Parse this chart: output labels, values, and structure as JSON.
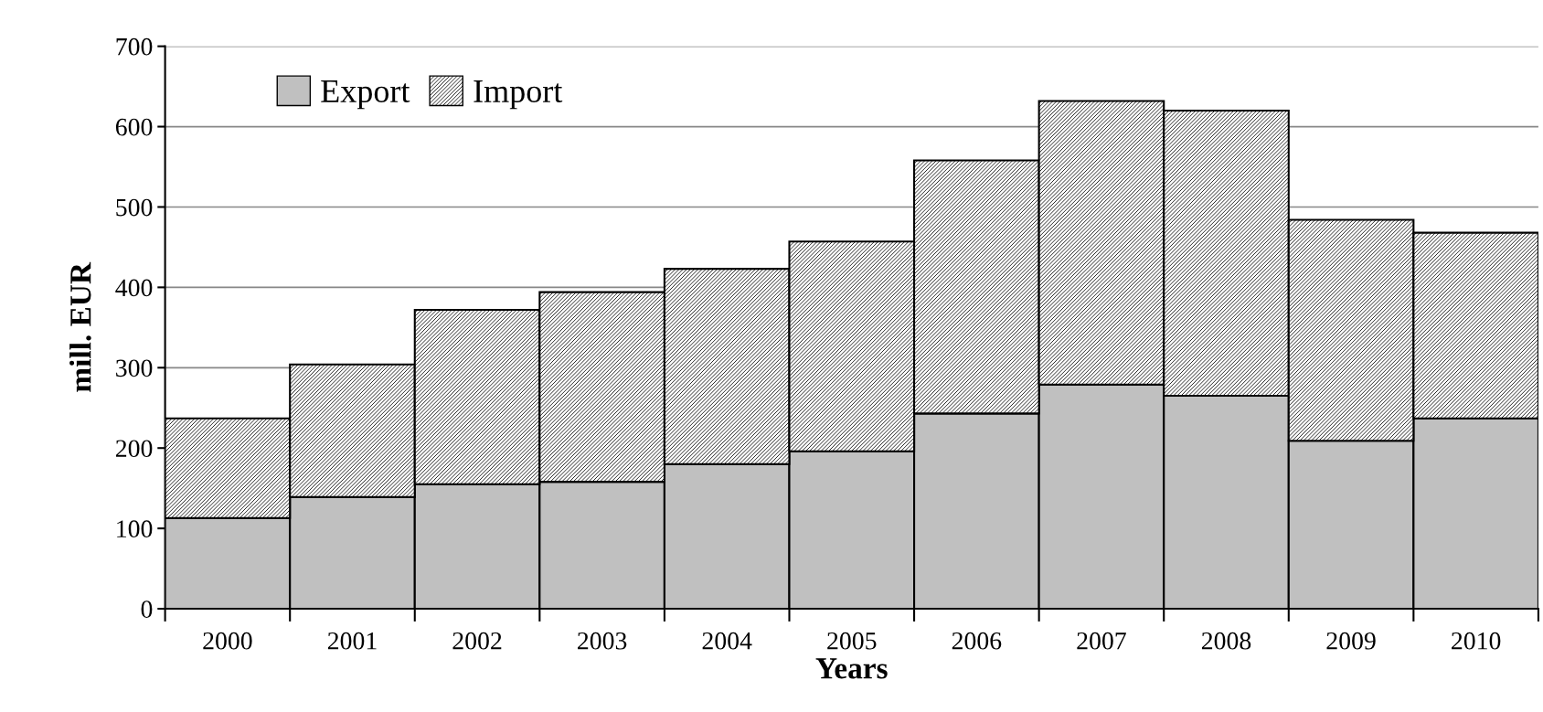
{
  "chart_data": {
    "type": "bar",
    "stacked": true,
    "xlabel": "Years",
    "ylabel": "mill. EUR",
    "categories": [
      "2000",
      "2001",
      "2002",
      "2003",
      "2004",
      "2005",
      "2006",
      "2007",
      "2008",
      "2009",
      "2010"
    ],
    "series": [
      {
        "name": "Export",
        "color": "#c0c0c0",
        "values": [
          113,
          139,
          155,
          158,
          180,
          196,
          243,
          279,
          265,
          209,
          237
        ]
      },
      {
        "name": "Import",
        "color": "#000000",
        "values": [
          124,
          165,
          217,
          236,
          243,
          261,
          315,
          353,
          355,
          275,
          231
        ]
      }
    ],
    "ylim": [
      0,
      700
    ],
    "yticks": [
      0,
      100,
      200,
      300,
      400,
      500,
      600,
      700
    ],
    "grid": "y",
    "legend": "top left"
  }
}
